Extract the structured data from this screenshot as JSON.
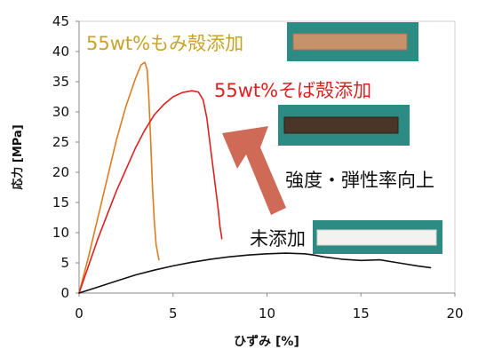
{
  "chart_data": {
    "type": "line",
    "xlabel": "ひずみ [%]",
    "ylabel": "応力 [MPa]",
    "xlim": [
      0,
      20
    ],
    "ylim": [
      0,
      45
    ],
    "x_ticks": [
      "0",
      "5",
      "10",
      "15",
      "20"
    ],
    "y_ticks": [
      "0",
      "5",
      "10",
      "15",
      "20",
      "25",
      "30",
      "35",
      "40",
      "45"
    ],
    "grid": false,
    "series": [
      {
        "name": "55wt%もみ殻添加",
        "color": "#e07b1e",
        "points": [
          [
            0,
            0
          ],
          [
            0.5,
            6
          ],
          [
            1,
            12.5
          ],
          [
            1.5,
            19
          ],
          [
            2,
            25.5
          ],
          [
            2.5,
            31
          ],
          [
            3,
            35.5
          ],
          [
            3.3,
            37.8
          ],
          [
            3.5,
            38.2
          ],
          [
            3.62,
            37
          ],
          [
            3.7,
            33
          ],
          [
            3.8,
            26
          ],
          [
            3.9,
            18
          ],
          [
            4.0,
            12
          ],
          [
            4.1,
            8
          ],
          [
            4.25,
            5.5
          ]
        ]
      },
      {
        "name": "55wt%そば殻添加",
        "color": "#e02020",
        "points": [
          [
            0,
            0
          ],
          [
            0.5,
            4.5
          ],
          [
            1,
            9
          ],
          [
            1.5,
            13
          ],
          [
            2,
            17
          ],
          [
            2.5,
            20.5
          ],
          [
            3,
            24
          ],
          [
            3.5,
            27
          ],
          [
            4,
            29.5
          ],
          [
            4.5,
            31.2
          ],
          [
            5,
            32.5
          ],
          [
            5.5,
            33.2
          ],
          [
            6,
            33.5
          ],
          [
            6.35,
            33.3
          ],
          [
            6.6,
            32
          ],
          [
            6.8,
            29
          ],
          [
            7,
            24
          ],
          [
            7.2,
            19
          ],
          [
            7.4,
            14
          ],
          [
            7.5,
            11
          ],
          [
            7.6,
            9
          ]
        ]
      },
      {
        "name": "未添加",
        "color": "#111111",
        "points": [
          [
            0,
            0
          ],
          [
            1,
            1
          ],
          [
            2,
            2
          ],
          [
            3,
            3
          ],
          [
            4,
            3.8
          ],
          [
            5,
            4.5
          ],
          [
            6,
            5.1
          ],
          [
            7,
            5.6
          ],
          [
            8,
            6
          ],
          [
            9,
            6.3
          ],
          [
            10,
            6.5
          ],
          [
            11,
            6.6
          ],
          [
            12,
            6.5
          ],
          [
            12.5,
            6.3
          ],
          [
            13,
            6
          ],
          [
            14,
            5.6
          ],
          [
            15,
            5.4
          ],
          [
            16,
            5.5
          ],
          [
            17,
            5
          ],
          [
            18,
            4.5
          ],
          [
            18.7,
            4.2
          ]
        ]
      }
    ],
    "annotations": {
      "momi": "55wt%もみ殻添加",
      "momi_color": "#c9a22a",
      "soba": "55wt%そば殻添加",
      "soba_color": "#e02020",
      "none": "未添加",
      "none_color": "#111111",
      "arrow_text": "強度・弾性率向上",
      "arrow_color": "#cf6a57"
    }
  }
}
